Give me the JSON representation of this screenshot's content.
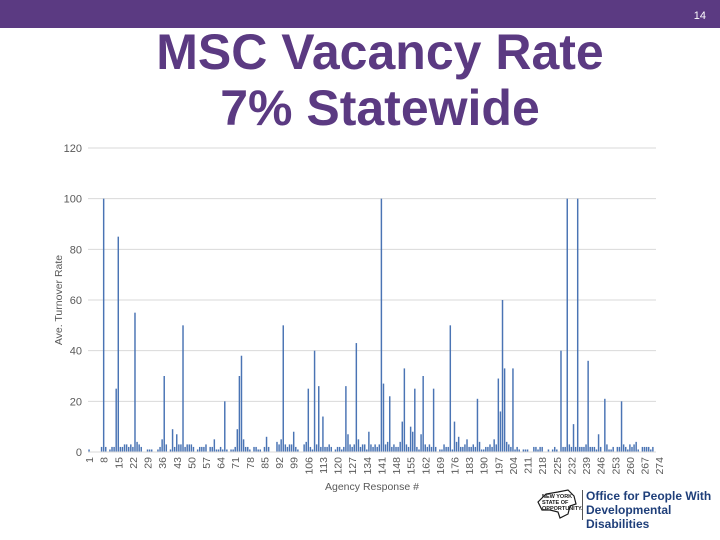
{
  "slide": {
    "number": "14",
    "title_line1": "MSC Vacancy Rate",
    "title_line2": "7% Statewide"
  },
  "logo": {
    "state_text": "NEW YORK STATE OF OPPORTUNITY.",
    "office_text": "Office for People With Developmental Disabilities"
  },
  "colors": {
    "brand_purple": "#5b3a82",
    "bar_blue": "#4a74b4",
    "grid": "#d9d9d9",
    "axis_text": "#595959",
    "logo_blue": "#1f3f7a"
  },
  "chart_data": {
    "type": "bar",
    "title": "",
    "xlabel": "Agency Response #",
    "ylabel": "Ave. Turnover Rate",
    "ylim": [
      0,
      120
    ],
    "yticks": [
      0,
      20,
      40,
      60,
      80,
      100,
      120
    ],
    "grid": true,
    "legend": "none",
    "x_tick_labels": [
      "1",
      "8",
      "15",
      "22",
      "29",
      "36",
      "43",
      "50",
      "57",
      "64",
      "71",
      "78",
      "85",
      "92",
      "99",
      "106",
      "113",
      "120",
      "127",
      "134",
      "141",
      "148",
      "155",
      "162",
      "169",
      "176",
      "183",
      "190",
      "197",
      "204",
      "211",
      "218",
      "225",
      "232",
      "239",
      "246",
      "253",
      "260",
      "267",
      "274"
    ],
    "categories_range": [
      1,
      276
    ],
    "values": [
      1,
      0,
      0,
      0,
      0,
      0,
      2,
      100,
      2,
      0,
      1,
      2,
      2,
      25,
      85,
      2,
      2,
      3,
      3,
      2,
      3,
      2,
      55,
      4,
      3,
      2,
      0,
      0,
      1,
      1,
      1,
      0,
      0,
      1,
      2,
      5,
      30,
      3,
      0,
      1,
      9,
      2,
      7,
      3,
      3,
      50,
      2,
      3,
      3,
      3,
      2,
      0,
      1,
      2,
      2,
      2,
      3,
      0,
      2,
      2,
      5,
      1,
      1,
      2,
      1,
      20,
      1,
      0,
      1,
      1,
      2,
      9,
      30,
      38,
      5,
      2,
      2,
      1,
      0,
      2,
      2,
      1,
      1,
      0,
      2,
      6,
      2,
      0,
      0,
      0,
      4,
      3,
      5,
      50,
      3,
      2,
      3,
      3,
      8,
      2,
      1,
      0,
      0,
      3,
      4,
      25,
      2,
      1,
      40,
      3,
      26,
      2,
      14,
      2,
      2,
      3,
      2,
      0,
      1,
      2,
      2,
      1,
      2,
      26,
      7,
      3,
      2,
      3,
      43,
      5,
      2,
      3,
      3,
      1,
      8,
      3,
      2,
      3,
      2,
      3,
      100,
      27,
      3,
      4,
      22,
      2,
      3,
      2,
      2,
      4,
      12,
      33,
      3,
      2,
      10,
      8,
      25,
      2,
      1,
      7,
      30,
      3,
      2,
      3,
      2,
      25,
      2,
      0,
      1,
      1,
      3,
      2,
      2,
      50,
      1,
      12,
      4,
      6,
      2,
      2,
      3,
      5,
      2,
      2,
      3,
      2,
      21,
      4,
      1,
      1,
      2,
      2,
      3,
      2,
      5,
      3,
      29,
      16,
      60,
      33,
      4,
      3,
      2,
      33,
      1,
      2,
      1,
      0,
      1,
      1,
      1,
      0,
      0,
      2,
      2,
      1,
      2,
      2,
      0,
      0,
      1,
      0,
      1,
      2,
      1,
      0,
      40,
      2,
      2,
      100,
      3,
      2,
      11,
      2,
      100,
      2,
      2,
      2,
      3,
      36,
      2,
      2,
      2,
      1,
      7,
      2,
      0,
      21,
      3,
      1,
      1,
      2,
      0,
      2,
      2,
      20,
      3,
      2,
      1,
      3,
      2,
      3,
      4,
      1,
      0,
      2,
      2,
      2,
      2,
      1,
      2,
      0
    ]
  }
}
